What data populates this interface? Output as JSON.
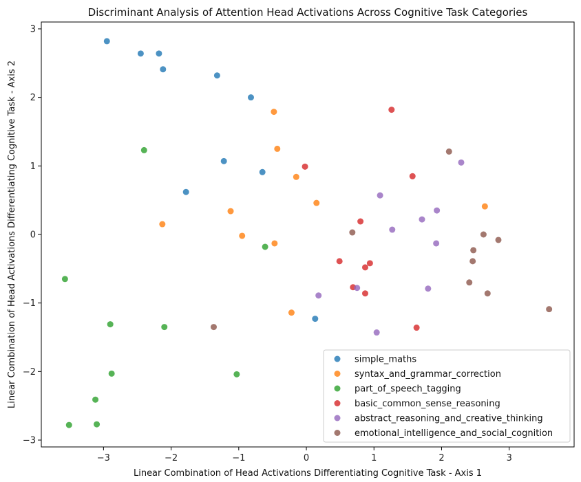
{
  "chart_data": {
    "type": "scatter",
    "title": "Discriminant Analysis of Attention Head Activations Across Cognitive Task Categories",
    "xlabel": "Linear Combination of Head Activations Differentiating Cognitive Task - Axis 1",
    "ylabel": "Linear Combination of Head Activations Differentiating Cognitive Task - Axis 2",
    "xlim": [
      -3.92,
      3.96
    ],
    "ylim": [
      -3.1,
      3.1
    ],
    "xticks": [
      -3,
      -2,
      -1,
      0,
      1,
      2,
      3
    ],
    "yticks": [
      -3,
      -2,
      -1,
      0,
      1,
      2,
      3
    ],
    "xtick_labels": [
      "−3",
      "−2",
      "−1",
      "0",
      "1",
      "2",
      "3"
    ],
    "ytick_labels": [
      "−3",
      "−2",
      "−1",
      "0",
      "1",
      "2",
      "3"
    ],
    "grid": false,
    "legend_position": "lower-right",
    "series": [
      {
        "name": "simple_maths",
        "color": "#1f77b4",
        "points": [
          [
            -2.95,
            2.82
          ],
          [
            -2.45,
            2.64
          ],
          [
            -2.18,
            2.64
          ],
          [
            -2.12,
            2.41
          ],
          [
            -1.32,
            2.32
          ],
          [
            -0.82,
            2.0
          ],
          [
            -1.22,
            1.07
          ],
          [
            -0.65,
            0.91
          ],
          [
            -1.78,
            0.62
          ],
          [
            0.13,
            -1.23
          ]
        ]
      },
      {
        "name": "syntax_and_grammar_correction",
        "color": "#ff7f0e",
        "points": [
          [
            -0.48,
            1.79
          ],
          [
            -0.43,
            1.25
          ],
          [
            -0.15,
            0.84
          ],
          [
            0.15,
            0.46
          ],
          [
            -1.12,
            0.34
          ],
          [
            -2.13,
            0.15
          ],
          [
            -0.95,
            -0.02
          ],
          [
            -0.47,
            -0.13
          ],
          [
            -0.22,
            -1.14
          ],
          [
            2.64,
            0.41
          ]
        ]
      },
      {
        "name": "part_of_speech_tagging",
        "color": "#2ca02c",
        "points": [
          [
            -2.4,
            1.23
          ],
          [
            -3.57,
            -0.65
          ],
          [
            -0.61,
            -0.18
          ],
          [
            -2.9,
            -1.31
          ],
          [
            -2.1,
            -1.35
          ],
          [
            -2.88,
            -2.03
          ],
          [
            -1.03,
            -2.04
          ],
          [
            -3.12,
            -2.41
          ],
          [
            -3.51,
            -2.78
          ],
          [
            -3.1,
            -2.77
          ]
        ]
      },
      {
        "name": "basic_common_sense_reasoning",
        "color": "#d62728",
        "points": [
          [
            1.26,
            1.82
          ],
          [
            -0.02,
            0.99
          ],
          [
            1.57,
            0.85
          ],
          [
            0.8,
            0.19
          ],
          [
            0.49,
            -0.39
          ],
          [
            0.94,
            -0.42
          ],
          [
            0.87,
            -0.48
          ],
          [
            0.69,
            -0.77
          ],
          [
            0.87,
            -0.86
          ],
          [
            1.63,
            -1.36
          ]
        ]
      },
      {
        "name": "abstract_reasoning_and_creative_thinking",
        "color": "#9467bd",
        "points": [
          [
            2.29,
            1.05
          ],
          [
            1.09,
            0.57
          ],
          [
            1.93,
            0.35
          ],
          [
            1.71,
            0.22
          ],
          [
            1.27,
            0.07
          ],
          [
            1.92,
            -0.13
          ],
          [
            0.75,
            -0.78
          ],
          [
            1.8,
            -0.79
          ],
          [
            0.18,
            -0.89
          ],
          [
            1.04,
            -1.43
          ]
        ]
      },
      {
        "name": "emotional_intelligence_and_social_cognition",
        "color": "#8c564b",
        "points": [
          [
            2.11,
            1.21
          ],
          [
            0.68,
            0.03
          ],
          [
            2.62,
            0.0
          ],
          [
            2.84,
            -0.08
          ],
          [
            2.47,
            -0.23
          ],
          [
            2.46,
            -0.39
          ],
          [
            2.41,
            -0.7
          ],
          [
            2.68,
            -0.86
          ],
          [
            3.59,
            -1.09
          ],
          [
            -1.37,
            -1.35
          ]
        ]
      }
    ]
  }
}
